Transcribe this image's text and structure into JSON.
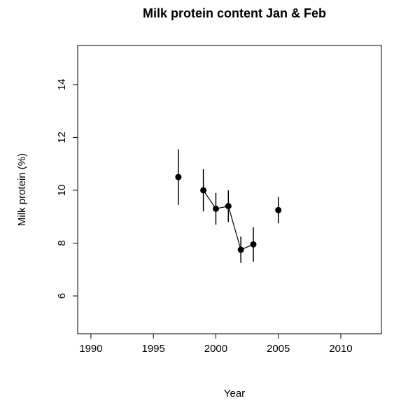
{
  "chart_data": {
    "type": "errorbar-line",
    "title": "Milk protein content Jan & Feb",
    "xlabel": "Year",
    "ylabel": "Milk protein (%)",
    "x": [
      1997,
      1998,
      1999,
      2000,
      2001,
      2002,
      2003,
      2004,
      2005
    ],
    "values": [
      10.5,
      null,
      10.0,
      9.3,
      9.4,
      7.75,
      7.95,
      null,
      9.25
    ],
    "errors": [
      1.05,
      null,
      0.8,
      0.6,
      0.6,
      0.5,
      0.65,
      null,
      0.5
    ],
    "color": "#000000",
    "xlim": [
      1988.94,
      2013.25
    ],
    "xticks": [
      1990,
      1995,
      2000,
      2005,
      2010
    ],
    "ylim": [
      4.57,
      15.48
    ],
    "yticks": [
      6,
      8,
      10,
      12,
      14
    ]
  }
}
